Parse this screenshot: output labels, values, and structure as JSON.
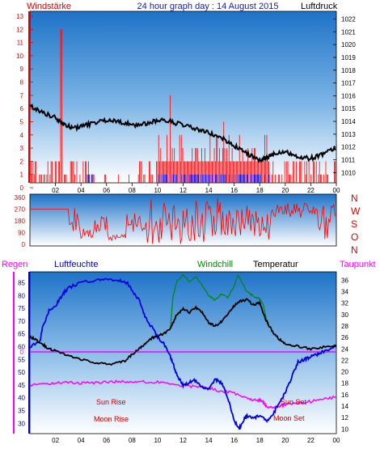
{
  "header": {
    "left_label": "Windstärke",
    "title": "24 hour graph day : 14 August 2015",
    "right_label": "Luftdruck"
  },
  "middle_panel": {
    "direction_labels": [
      "N",
      "W",
      "S",
      "O",
      "N"
    ]
  },
  "bottom_header": {
    "regen": "Regen",
    "luftfeuchte": "Luftfeuchte",
    "windchill": "Windchill",
    "temperatur": "Temperatur",
    "taupunkt": "Taupunkt"
  },
  "annotations": {
    "sun_rise": "Sun Rise",
    "moon_rise": "Moon Rise",
    "sun_set": "Sun Set",
    "moon_set": "Moon Set",
    "rain_zero": "0"
  },
  "colors": {
    "wind": "#ff0000",
    "wind_strong": "#0000ff",
    "pressure": "#000000",
    "humidity": "#0000dd",
    "temperature": "#000000",
    "windchill": "#008800",
    "dewpoint": "#ff00ff",
    "rain": "#ff00ff",
    "axis_left": "#dd0000",
    "axis_right": "#000000",
    "sky_top": "#1a6fc4",
    "sky_bottom": "#ffffff"
  },
  "chart_data": [
    {
      "type": "bar",
      "panel": "wind-pressure",
      "x_ticks": [
        "02",
        "04",
        "06",
        "08",
        "10",
        "12",
        "14",
        "16",
        "18",
        "20",
        "22",
        "00"
      ],
      "xlim": [
        0,
        24
      ],
      "left_axis": {
        "label": "Windstärke",
        "ticks": [
          0,
          1,
          2,
          3,
          4,
          5,
          6,
          7,
          8,
          9,
          10,
          11,
          12,
          13
        ],
        "ylim": [
          0,
          13
        ]
      },
      "right_axis": {
        "label": "Luftdruck",
        "ticks": [
          1010,
          1011,
          1012,
          1013,
          1014,
          1015,
          1016,
          1017,
          1018,
          1019,
          1020,
          1021,
          1022
        ],
        "ylim": [
          1009.2,
          1022.6
        ]
      },
      "wind_segments": [
        {
          "x": [
            0.0,
            2.4
          ],
          "level": "low"
        },
        {
          "x": [
            2.4,
            2.6
          ],
          "level": "gust",
          "peak": 12
        },
        {
          "x": [
            2.6,
            4.5
          ],
          "level": "low"
        },
        {
          "x": [
            4.5,
            5.1
          ],
          "level": "low_mixed"
        },
        {
          "x": [
            5.1,
            8.5
          ],
          "level": "calm"
        },
        {
          "x": [
            8.5,
            10.0
          ],
          "level": "low"
        },
        {
          "x": [
            10.0,
            18.8
          ],
          "level": "active"
        },
        {
          "x": [
            18.8,
            24.0
          ],
          "level": "low"
        }
      ],
      "pressure": {
        "x": [
          0.0,
          1.0,
          2.0,
          2.6,
          3.2,
          4.0,
          5.0,
          6.0,
          7.0,
          8.0,
          9.0,
          10.0,
          11.0,
          12.0,
          13.0,
          14.0,
          15.0,
          16.0,
          17.0,
          18.0,
          18.6,
          19.2,
          20.0,
          21.0,
          22.0,
          23.0,
          24.0
        ],
        "y": [
          1015.2,
          1014.7,
          1014.3,
          1013.9,
          1013.5,
          1013.6,
          1013.9,
          1014.1,
          1014.0,
          1013.7,
          1013.8,
          1014.1,
          1014.0,
          1013.7,
          1013.4,
          1013.1,
          1012.7,
          1012.1,
          1011.5,
          1010.9,
          1011.2,
          1011.5,
          1011.7,
          1011.2,
          1011.1,
          1011.5,
          1011.9
        ]
      }
    },
    {
      "type": "line",
      "panel": "wind-direction",
      "xlim": [
        0,
        24
      ],
      "left_axis": {
        "ticks": [
          0,
          90,
          180,
          270,
          360
        ],
        "ylim": [
          0,
          360
        ]
      },
      "right_labels": [
        "N",
        "W",
        "S",
        "O",
        "N"
      ]
    },
    {
      "type": "line",
      "panel": "humidity-temperature",
      "x_ticks": [
        "02",
        "04",
        "06",
        "08",
        "10",
        "12",
        "14",
        "16",
        "18",
        "20",
        "22",
        "00"
      ],
      "xlim": [
        0,
        24
      ],
      "left_axis": {
        "label": "Luftfeuchte",
        "ticks": [
          30,
          35,
          40,
          45,
          50,
          55,
          60,
          65,
          70,
          75,
          80,
          85
        ],
        "ylim": [
          26,
          88
        ]
      },
      "right_axis": {
        "label": "Temperatur",
        "ticks": [
          10,
          12,
          14,
          16,
          18,
          20,
          22,
          24,
          26,
          28,
          30,
          32,
          34,
          36
        ],
        "ylim": [
          9.2,
          36.9
        ]
      },
      "series": [
        {
          "name": "Luftfeuchte",
          "x": [
            0.0,
            0.8,
            1.0,
            1.5,
            2.0,
            2.5,
            3.0,
            4.0,
            5.0,
            6.0,
            7.0,
            7.6,
            8.0,
            8.6,
            9.0,
            9.5,
            10.0,
            10.5,
            11.0,
            11.3,
            11.6,
            12.0,
            12.5,
            13.0,
            13.5,
            14.0,
            14.5,
            15.0,
            15.5,
            16.0,
            16.4,
            16.8,
            17.0,
            17.5,
            18.0,
            18.5,
            19.0,
            19.5,
            20.0,
            20.5,
            21.0,
            21.5,
            22.0,
            22.5,
            23.0,
            24.0
          ],
          "y": [
            60,
            62,
            68,
            74,
            76,
            80,
            83,
            85,
            86,
            86,
            86,
            85,
            82,
            78,
            72,
            68,
            64,
            61,
            56,
            52,
            48,
            45,
            46,
            47,
            44,
            43,
            47,
            46,
            40,
            31,
            28,
            32,
            33,
            32,
            33,
            31,
            33,
            38,
            42,
            48,
            54,
            55,
            56,
            57,
            58,
            60
          ]
        },
        {
          "name": "Temperatur",
          "x": [
            0.0,
            0.5,
            1.0,
            1.5,
            2.0,
            3.0,
            4.0,
            5.0,
            6.0,
            7.0,
            7.5,
            8.0,
            8.5,
            9.0,
            9.5,
            10.0,
            10.5,
            11.0,
            11.5,
            12.0,
            12.5,
            13.0,
            13.5,
            14.0,
            14.5,
            15.0,
            15.5,
            16.0,
            16.5,
            17.0,
            17.5,
            18.0,
            18.5,
            19.0,
            19.5,
            20.0,
            21.0,
            22.0,
            23.0,
            24.0
          ],
          "y": [
            26.2,
            25.5,
            24.8,
            24.0,
            23.7,
            22.8,
            22.2,
            21.7,
            21.3,
            21.6,
            22.0,
            23.0,
            24.0,
            24.8,
            25.8,
            26.4,
            26.6,
            27.5,
            30.0,
            31.0,
            30.4,
            31.2,
            30.4,
            28.5,
            28.0,
            28.7,
            30.0,
            31.5,
            32.4,
            32.6,
            31.7,
            32.0,
            29.0,
            27.0,
            25.8,
            25.0,
            24.4,
            24.0,
            24.3,
            24.6
          ]
        },
        {
          "name": "Windchill",
          "x": [
            11.0,
            11.2,
            11.5,
            12.0,
            12.5,
            13.0,
            13.5,
            14.0,
            14.5,
            15.0,
            15.5,
            16.0,
            16.3,
            17.0,
            17.5,
            18.0,
            18.3,
            18.6
          ],
          "y": [
            27.6,
            33.0,
            35.8,
            36.9,
            35.8,
            36.6,
            35.0,
            33.3,
            32.5,
            33.6,
            33.0,
            35.0,
            36.9,
            34.0,
            33.2,
            32.7,
            31.5,
            28.2
          ]
        },
        {
          "name": "Taupunkt",
          "x": [
            0.0,
            1.0,
            2.0,
            3.0,
            4.0,
            5.0,
            6.0,
            7.0,
            8.0,
            9.0,
            10.0,
            11.0,
            12.0,
            13.0,
            14.0,
            15.0,
            16.0,
            17.0,
            17.5,
            18.0,
            18.2,
            18.5,
            19.0,
            19.5,
            20.0,
            21.0,
            22.0,
            23.0,
            24.0
          ],
          "y": [
            17.6,
            17.8,
            18.0,
            18.1,
            18.0,
            18.1,
            18.2,
            18.3,
            18.3,
            18.2,
            18.2,
            18.0,
            17.6,
            17.4,
            17.2,
            16.6,
            16.3,
            15.4,
            15.0,
            15.1,
            15.0,
            14.0,
            13.8,
            13.9,
            14.3,
            14.5,
            14.8,
            15.3,
            15.6
          ]
        }
      ],
      "rain_baseline": 0
    }
  ]
}
